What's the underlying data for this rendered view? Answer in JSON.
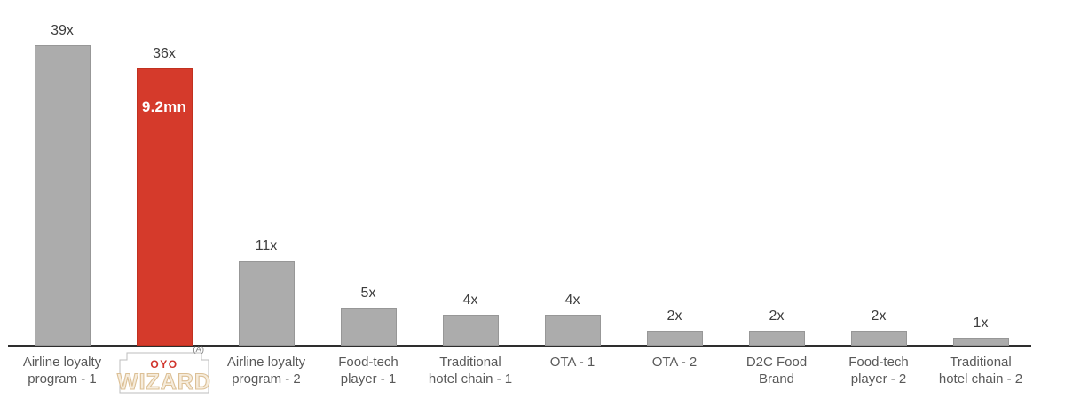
{
  "chart_data": {
    "type": "bar",
    "title": "",
    "xlabel": "",
    "ylabel": "",
    "ylim": [
      0,
      42
    ],
    "grid": false,
    "legend": false,
    "axis_color": "#2e2e2e",
    "bar_color": "#acacac",
    "highlight_color": "#d53a2b",
    "value_label_color": "#3d3d3d",
    "category_label_color": "#595959",
    "categories": [
      {
        "line1": "Airline loyalty",
        "line2": "program - 1",
        "is_logo": false
      },
      {
        "line1": "OYO WIZARD",
        "line2": "",
        "is_logo": true
      },
      {
        "line1": "Airline loyalty",
        "line2": "program - 2",
        "is_logo": false
      },
      {
        "line1": "Food-tech",
        "line2": "player - 1",
        "is_logo": false
      },
      {
        "line1": "Traditional",
        "line2": "hotel chain - 1",
        "is_logo": false
      },
      {
        "line1": "OTA - 1",
        "line2": "",
        "is_logo": false
      },
      {
        "line1": "OTA - 2",
        "line2": "",
        "is_logo": false
      },
      {
        "line1": "D2C Food",
        "line2": "Brand",
        "is_logo": false
      },
      {
        "line1": "Food-tech",
        "line2": "player - 2",
        "is_logo": false
      },
      {
        "line1": "Traditional",
        "line2": "hotel chain - 2",
        "is_logo": false
      }
    ],
    "values": [
      39,
      36,
      11,
      5,
      4,
      4,
      2,
      2,
      2,
      1
    ],
    "value_labels": [
      "39x",
      "36x",
      "11x",
      "5x",
      "4x",
      "4x",
      "2x",
      "2x",
      "2x",
      "1x"
    ],
    "highlight": {
      "index": 1,
      "annotation": "9.2mn"
    }
  },
  "logo": {
    "brand": "OYO",
    "product": "WIZARD",
    "footnote": "(A)"
  }
}
